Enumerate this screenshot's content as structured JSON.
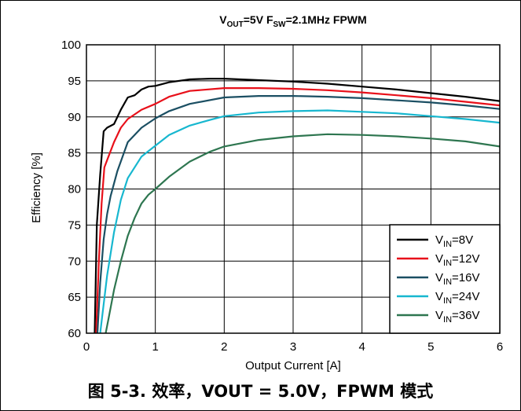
{
  "caption": "图 5-3. 效率，VOUT = 5.0V，FPWM 模式",
  "chart_data": {
    "type": "line",
    "title_parts": [
      {
        "text": "V",
        "sub": false
      },
      {
        "text": "OUT",
        "sub": true
      },
      {
        "text": "=5V F",
        "sub": false
      },
      {
        "text": "SW",
        "sub": true
      },
      {
        "text": "=2.1MHz FPWM",
        "sub": false
      }
    ],
    "xlabel": "Output Current [A]",
    "ylabel": "Efficiency [%]",
    "xlim": [
      0,
      6
    ],
    "ylim": [
      60,
      100
    ],
    "xticks": [
      "0",
      "1",
      "2",
      "3",
      "4",
      "5",
      "6"
    ],
    "yticks": [
      "60",
      "65",
      "70",
      "75",
      "80",
      "85",
      "90",
      "95",
      "100"
    ],
    "grid": true,
    "legend_position": "bottom-right",
    "series": [
      {
        "name": "VIN=8V",
        "name_main": "V",
        "name_sub": "IN",
        "name_tail": "=8V",
        "color": "#000000",
        "x": [
          0.12,
          0.15,
          0.2,
          0.25,
          0.3,
          0.4,
          0.5,
          0.6,
          0.7,
          0.8,
          0.9,
          1.0,
          1.2,
          1.5,
          1.8,
          2.0,
          2.5,
          3.0,
          3.5,
          4.0,
          4.5,
          5.0,
          5.5,
          6.0
        ],
        "y": [
          60,
          75,
          82,
          88,
          88.5,
          89,
          91,
          92.7,
          93,
          93.8,
          94.2,
          94.3,
          94.8,
          95.2,
          95.3,
          95.3,
          95.1,
          94.9,
          94.6,
          94.2,
          93.8,
          93.3,
          92.8,
          92.2
        ]
      },
      {
        "name": "VIN=12V",
        "name_main": "V",
        "name_sub": "IN",
        "name_tail": "=12V",
        "color": "#e8101a",
        "x": [
          0.14,
          0.18,
          0.22,
          0.26,
          0.3,
          0.4,
          0.5,
          0.6,
          0.8,
          1.0,
          1.2,
          1.5,
          2.0,
          2.5,
          3.0,
          3.5,
          4.0,
          4.5,
          5.0,
          5.5,
          6.0
        ],
        "y": [
          60,
          70,
          78,
          83,
          84,
          86.5,
          88.5,
          89.7,
          91,
          91.8,
          92.8,
          93.6,
          94.0,
          94.0,
          93.9,
          93.7,
          93.4,
          93.0,
          92.6,
          92.1,
          91.6
        ]
      },
      {
        "name": "VIN=16V",
        "name_main": "V",
        "name_sub": "IN",
        "name_tail": "=16V",
        "color": "#1b4f63",
        "x": [
          0.16,
          0.2,
          0.25,
          0.3,
          0.35,
          0.45,
          0.6,
          0.8,
          1.0,
          1.2,
          1.5,
          2.0,
          2.5,
          3.0,
          3.5,
          4.0,
          4.5,
          5.0,
          5.5,
          6.0
        ],
        "y": [
          60,
          67,
          73,
          76.5,
          79,
          82.5,
          86.5,
          88.5,
          89.8,
          90.8,
          91.8,
          92.7,
          92.9,
          92.9,
          92.8,
          92.6,
          92.3,
          92.0,
          91.6,
          91.1
        ]
      },
      {
        "name": "VIN=24V",
        "name_main": "V",
        "name_sub": "IN",
        "name_tail": "=24V",
        "color": "#17b7cf",
        "x": [
          0.2,
          0.25,
          0.3,
          0.4,
          0.5,
          0.6,
          0.8,
          1.0,
          1.2,
          1.5,
          1.8,
          2.0,
          2.5,
          3.0,
          3.5,
          4.0,
          4.5,
          5.0,
          5.5,
          6.0
        ],
        "y": [
          60,
          64,
          68,
          74,
          78.5,
          81.5,
          84.5,
          86,
          87.5,
          88.8,
          89.6,
          90.1,
          90.6,
          90.8,
          90.9,
          90.7,
          90.5,
          90.1,
          89.7,
          89.2
        ]
      },
      {
        "name": "VIN=36V",
        "name_main": "V",
        "name_sub": "IN",
        "name_tail": "=36V",
        "color": "#2e7650",
        "x": [
          0.28,
          0.32,
          0.4,
          0.5,
          0.6,
          0.7,
          0.8,
          0.9,
          1.0,
          1.2,
          1.5,
          1.8,
          2.0,
          2.5,
          3.0,
          3.5,
          4.0,
          4.5,
          5.0,
          5.5,
          6.0
        ],
        "y": [
          60,
          62,
          66,
          70,
          73.5,
          76,
          78,
          79.2,
          80,
          81.7,
          83.8,
          85.2,
          85.9,
          86.8,
          87.3,
          87.6,
          87.5,
          87.3,
          87.0,
          86.6,
          85.9
        ]
      }
    ]
  }
}
